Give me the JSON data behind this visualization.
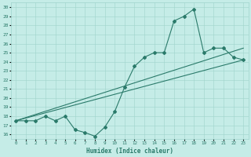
{
  "xlabel": "Humidex (Indice chaleur)",
  "xlim": [
    -0.5,
    23.5
  ],
  "ylim": [
    15.5,
    30.5
  ],
  "xticks": [
    0,
    1,
    2,
    3,
    4,
    5,
    6,
    7,
    8,
    9,
    10,
    11,
    12,
    13,
    14,
    15,
    16,
    17,
    18,
    19,
    20,
    21,
    22,
    23
  ],
  "yticks": [
    16,
    17,
    18,
    19,
    20,
    21,
    22,
    23,
    24,
    25,
    26,
    27,
    28,
    29,
    30
  ],
  "line_color": "#2a7a6a",
  "bg_color": "#c5ece7",
  "grid_color": "#9fd4cc",
  "line1_x": [
    0,
    1,
    2,
    3,
    4,
    5,
    6,
    7,
    8,
    9,
    10,
    11,
    12,
    13,
    14,
    15,
    16,
    17,
    18,
    19,
    20,
    21,
    22,
    23
  ],
  "line1_y": [
    17.5,
    17.5,
    17.5,
    18.0,
    17.5,
    18.0,
    16.5,
    16.2,
    15.8,
    16.8,
    18.5,
    21.2,
    23.5,
    24.5,
    25.0,
    25.0,
    28.5,
    29.0,
    29.8,
    25.0,
    25.5,
    25.5,
    24.5,
    24.2
  ],
  "line2_x": [
    0,
    23
  ],
  "line2_y": [
    17.5,
    24.2
  ],
  "line3_x": [
    0,
    23
  ],
  "line3_y": [
    17.5,
    25.5
  ]
}
